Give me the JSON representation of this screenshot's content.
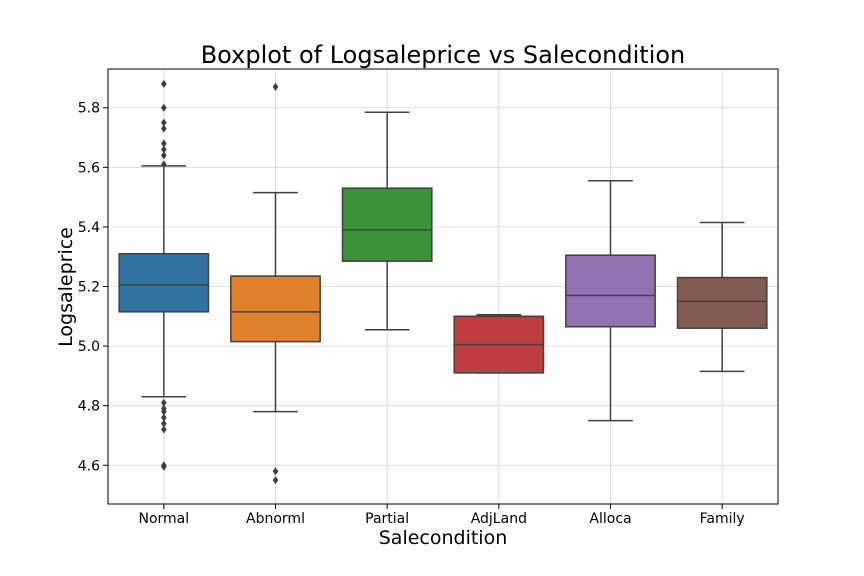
{
  "chart_data": {
    "type": "box",
    "title": "Boxplot of Logsaleprice vs Salecondition",
    "xlabel": "Salecondition",
    "ylabel": "Logsaleprice",
    "ylim": [
      4.47,
      5.93
    ],
    "yticks": [
      4.6,
      4.8,
      5.0,
      5.2,
      5.4,
      5.6,
      5.8
    ],
    "ytick_labels": [
      "4.6",
      "4.8",
      "5.0",
      "5.2",
      "5.4",
      "5.6",
      "5.8"
    ],
    "grid": true,
    "categories": [
      "Normal",
      "Abnorml",
      "Partial",
      "AdjLand",
      "Alloca",
      "Family"
    ],
    "boxes": [
      {
        "category": "Normal",
        "whisker_low": 4.83,
        "q1": 5.115,
        "median": 5.205,
        "q3": 5.31,
        "whisker_high": 5.605,
        "color": "#3274a1",
        "outliers": [
          5.88,
          5.8,
          5.75,
          5.73,
          5.68,
          5.66,
          5.64,
          5.61,
          4.81,
          4.79,
          4.78,
          4.76,
          4.74,
          4.72,
          4.6,
          4.595
        ]
      },
      {
        "category": "Abnorml",
        "whisker_low": 4.78,
        "q1": 5.015,
        "median": 5.115,
        "q3": 5.235,
        "whisker_high": 5.515,
        "color": "#e1812c",
        "outliers": [
          5.87,
          4.58,
          4.55
        ]
      },
      {
        "category": "Partial",
        "whisker_low": 5.055,
        "q1": 5.285,
        "median": 5.39,
        "q3": 5.53,
        "whisker_high": 5.785,
        "color": "#3a923a",
        "outliers": []
      },
      {
        "category": "AdjLand",
        "whisker_low": 4.91,
        "q1": 4.91,
        "median": 5.005,
        "q3": 5.1,
        "whisker_high": 5.105,
        "color": "#c03d3e",
        "outliers": []
      },
      {
        "category": "Alloca",
        "whisker_low": 4.75,
        "q1": 5.065,
        "median": 5.17,
        "q3": 5.305,
        "whisker_high": 5.555,
        "color": "#9372b2",
        "outliers": []
      },
      {
        "category": "Family",
        "whisker_low": 4.915,
        "q1": 5.06,
        "median": 5.15,
        "q3": 5.23,
        "whisker_high": 5.415,
        "color": "#845b53",
        "outliers": []
      }
    ]
  }
}
